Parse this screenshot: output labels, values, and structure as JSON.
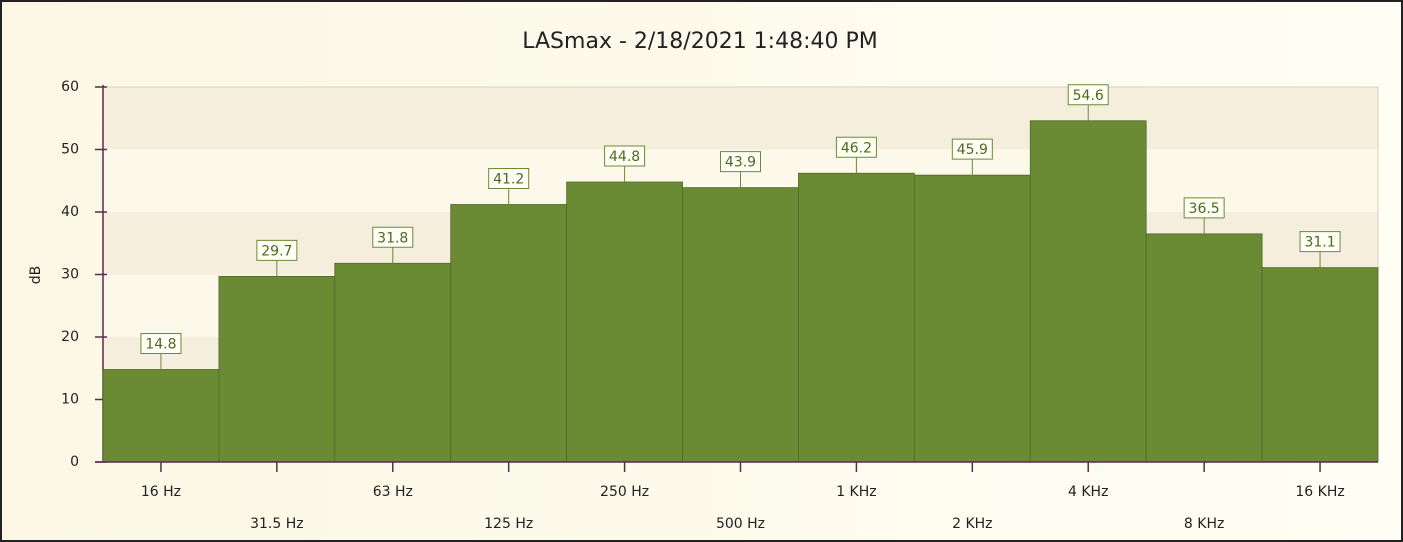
{
  "chart_data": {
    "type": "bar",
    "title": "LASmax  -  2/18/2021 1:48:40 PM",
    "y_label": "dB",
    "categories": [
      "16 Hz",
      "31.5 Hz",
      "63 Hz",
      "125 Hz",
      "250 Hz",
      "500 Hz",
      "1 KHz",
      "2 KHz",
      "4 KHz",
      "8 KHz",
      "16 KHz"
    ],
    "values": [
      14.8,
      29.7,
      31.8,
      41.2,
      44.8,
      43.9,
      46.2,
      45.9,
      54.6,
      36.5,
      31.1
    ],
    "color": "#6b8a34",
    "ylim": [
      0,
      60
    ],
    "yticks": [
      0,
      10,
      20,
      30,
      40,
      50,
      60
    ],
    "grid": false
  }
}
